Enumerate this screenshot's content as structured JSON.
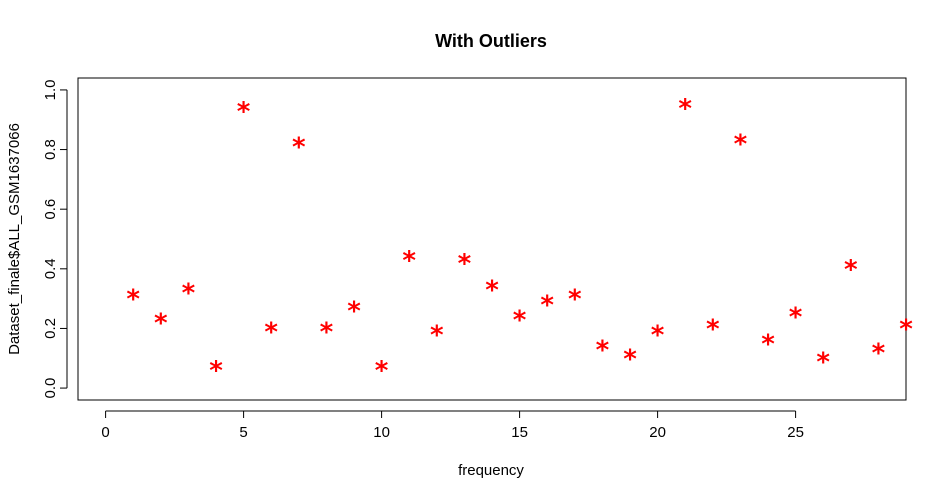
{
  "chart_data": {
    "type": "scatter",
    "title": "With Outliers",
    "xlabel": "frequency",
    "ylabel": "Dataset_finale$ALL_GSM1637066",
    "xlim": [
      -1,
      29
    ],
    "ylim": [
      -0.04,
      1.04
    ],
    "xticks": [
      0,
      5,
      10,
      15,
      20,
      25
    ],
    "yticks": [
      0.0,
      0.2,
      0.4,
      0.6,
      0.8,
      1.0
    ],
    "ytick_labels": [
      "0.0",
      "0.2",
      "0.4",
      "0.6",
      "0.8",
      "1.0"
    ],
    "grid": false,
    "marker": "*",
    "marker_color": "#ff0000",
    "x": [
      1,
      2,
      3,
      4,
      5,
      6,
      7,
      8,
      9,
      10,
      11,
      12,
      13,
      14,
      15,
      16,
      17,
      18,
      19,
      20,
      21,
      22,
      23,
      24,
      25,
      26,
      27,
      28,
      29
    ],
    "y": [
      0.32,
      0.24,
      0.34,
      0.08,
      0.95,
      0.21,
      0.83,
      0.21,
      0.28,
      0.08,
      0.45,
      0.2,
      0.44,
      0.35,
      0.25,
      0.3,
      0.32,
      0.15,
      0.12,
      0.2,
      0.96,
      0.22,
      0.84,
      0.17,
      0.26,
      0.11,
      0.42,
      0.14,
      0.22
    ]
  }
}
